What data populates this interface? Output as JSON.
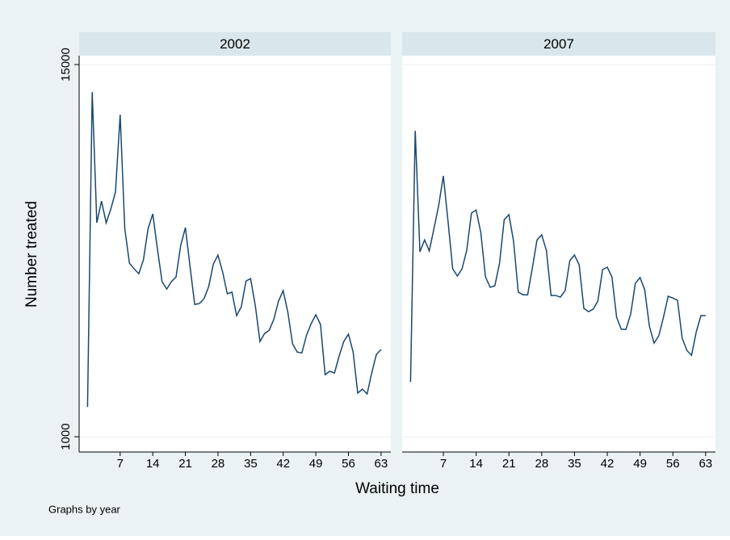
{
  "chart_data": {
    "type": "line",
    "y_label": "Number treated",
    "x_label": "Waiting time",
    "note": "Graphs by year",
    "log_scale": true,
    "grid": true,
    "color": "#1a476f",
    "ylim": [
      895,
      16000
    ],
    "yticks": [
      1000,
      15000
    ],
    "xlim": [
      -1.8,
      65.1
    ],
    "xticks": [
      7,
      14,
      21,
      28,
      35,
      42,
      49,
      56,
      63
    ],
    "x": [
      0,
      1,
      2,
      3,
      4,
      5,
      6,
      7,
      8,
      9,
      10,
      11,
      12,
      13,
      14,
      15,
      16,
      17,
      18,
      19,
      20,
      21,
      22,
      23,
      24,
      25,
      26,
      27,
      28,
      29,
      30,
      31,
      32,
      33,
      34,
      35,
      36,
      37,
      38,
      39,
      40,
      41,
      42,
      43,
      44,
      45,
      46,
      47,
      48,
      49,
      50,
      51,
      52,
      53,
      54,
      55,
      56,
      57,
      58,
      59,
      60,
      61,
      62,
      63
    ],
    "panels": [
      {
        "title": "2002",
        "values": [
          1243,
          12280,
          4745,
          5555,
          4745,
          5240,
          5930,
          10420,
          4550,
          3535,
          3395,
          3275,
          3620,
          4550,
          5060,
          3930,
          3090,
          2930,
          3090,
          3200,
          4025,
          4580,
          3455,
          2620,
          2635,
          2730,
          2980,
          3515,
          3750,
          3315,
          2830,
          2865,
          2415,
          2575,
          3105,
          3160,
          2605,
          2000,
          2120,
          2170,
          2355,
          2685,
          2895,
          2470,
          1965,
          1853,
          1840,
          2095,
          2275,
          2430,
          2263,
          1572,
          1610,
          1590,
          1800,
          2000,
          2110,
          1853,
          1374,
          1415,
          1365,
          1590,
          1820,
          1887
        ]
      },
      {
        "title": "2007",
        "values": [
          1490,
          9265,
          3840,
          4190,
          3865,
          4550,
          5370,
          6670,
          4800,
          3395,
          3220,
          3395,
          3885,
          5090,
          5210,
          4420,
          3200,
          2965,
          3000,
          3535,
          4855,
          5030,
          4145,
          2865,
          2810,
          2810,
          3410,
          4190,
          4345,
          3885,
          2795,
          2795,
          2763,
          2895,
          3600,
          3750,
          3495,
          2545,
          2485,
          2530,
          2685,
          3375,
          3435,
          3200,
          2385,
          2185,
          2185,
          2442,
          3055,
          3185,
          2913,
          2235,
          1977,
          2085,
          2385,
          2780,
          2745,
          2700,
          2048,
          1875,
          1810,
          2145,
          2415,
          2415
        ]
      }
    ]
  }
}
